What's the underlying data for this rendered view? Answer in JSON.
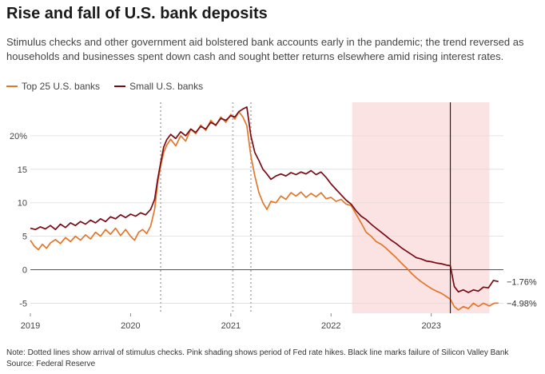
{
  "header": {
    "title": "Rise and fall of U.S. bank deposits",
    "subtitle": "Stimulus checks and other government aid bolstered bank accounts early in the pandemic; the trend reversed as households and businesses spent down cash and sought better returns elsewhere amid rising interest rates."
  },
  "footer": {
    "note": "Note: Dotted lines show arrival of stimulus checks. Pink shading shows period of Fed rate hikes. Black line marks failure of Silicon Valley Bank",
    "source": "Source: Federal Reserve"
  },
  "chart_data": {
    "type": "line",
    "title": "Rise and fall of U.S. bank deposits",
    "xlabel": "",
    "ylabel": "",
    "x_ticks": [
      "2019",
      "2020",
      "2021",
      "2022",
      "2023"
    ],
    "y_ticks": [
      "20%",
      "15",
      "10",
      "5",
      "0",
      "-5"
    ],
    "ylim": [
      -6.5,
      25
    ],
    "xlim": [
      2019.0,
      2023.72
    ],
    "grid": true,
    "legend_position": "top-left",
    "stimulus_dates": [
      2020.3,
      2021.02,
      2021.2
    ],
    "rate_hike_period": [
      2022.21,
      2023.58
    ],
    "svb_failure": 2023.19,
    "series": [
      {
        "name": "Top 25 U.S. banks",
        "color": "#e2772a",
        "end_label": "−4.98%",
        "points": [
          [
            2019.0,
            4.4
          ],
          [
            2019.04,
            3.5
          ],
          [
            2019.08,
            3.0
          ],
          [
            2019.12,
            3.8
          ],
          [
            2019.16,
            3.2
          ],
          [
            2019.2,
            4.0
          ],
          [
            2019.25,
            4.5
          ],
          [
            2019.3,
            3.9
          ],
          [
            2019.35,
            4.8
          ],
          [
            2019.4,
            4.2
          ],
          [
            2019.45,
            5.0
          ],
          [
            2019.5,
            4.4
          ],
          [
            2019.55,
            5.2
          ],
          [
            2019.6,
            4.6
          ],
          [
            2019.65,
            5.6
          ],
          [
            2019.7,
            5.0
          ],
          [
            2019.75,
            6.0
          ],
          [
            2019.8,
            5.3
          ],
          [
            2019.85,
            6.2
          ],
          [
            2019.9,
            5.1
          ],
          [
            2019.95,
            6.0
          ],
          [
            2020.0,
            5.0
          ],
          [
            2020.04,
            4.4
          ],
          [
            2020.08,
            5.6
          ],
          [
            2020.12,
            6.0
          ],
          [
            2020.16,
            5.4
          ],
          [
            2020.2,
            6.5
          ],
          [
            2020.24,
            9.0
          ],
          [
            2020.27,
            13.0
          ],
          [
            2020.3,
            15.5
          ],
          [
            2020.33,
            17.5
          ],
          [
            2020.36,
            18.6
          ],
          [
            2020.4,
            19.5
          ],
          [
            2020.45,
            18.5
          ],
          [
            2020.5,
            20.0
          ],
          [
            2020.55,
            19.2
          ],
          [
            2020.6,
            21.0
          ],
          [
            2020.65,
            20.3
          ],
          [
            2020.7,
            21.6
          ],
          [
            2020.75,
            20.8
          ],
          [
            2020.8,
            22.3
          ],
          [
            2020.85,
            21.5
          ],
          [
            2020.9,
            22.8
          ],
          [
            2020.95,
            22.0
          ],
          [
            2021.0,
            23.2
          ],
          [
            2021.04,
            22.5
          ],
          [
            2021.08,
            23.6
          ],
          [
            2021.12,
            22.8
          ],
          [
            2021.16,
            21.5
          ],
          [
            2021.2,
            17.0
          ],
          [
            2021.24,
            14.0
          ],
          [
            2021.28,
            11.5
          ],
          [
            2021.32,
            10.0
          ],
          [
            2021.36,
            9.0
          ],
          [
            2021.4,
            10.2
          ],
          [
            2021.45,
            10.0
          ],
          [
            2021.5,
            11.0
          ],
          [
            2021.55,
            10.5
          ],
          [
            2021.6,
            11.5
          ],
          [
            2021.65,
            11.0
          ],
          [
            2021.7,
            11.6
          ],
          [
            2021.75,
            10.8
          ],
          [
            2021.8,
            11.4
          ],
          [
            2021.85,
            10.9
          ],
          [
            2021.9,
            11.5
          ],
          [
            2021.95,
            10.6
          ],
          [
            2022.0,
            10.8
          ],
          [
            2022.05,
            10.2
          ],
          [
            2022.1,
            10.5
          ],
          [
            2022.15,
            9.8
          ],
          [
            2022.2,
            9.6
          ],
          [
            2022.25,
            8.3
          ],
          [
            2022.3,
            7.0
          ],
          [
            2022.35,
            5.6
          ],
          [
            2022.4,
            5.0
          ],
          [
            2022.45,
            4.2
          ],
          [
            2022.5,
            3.8
          ],
          [
            2022.55,
            3.2
          ],
          [
            2022.6,
            2.5
          ],
          [
            2022.65,
            1.8
          ],
          [
            2022.7,
            1.0
          ],
          [
            2022.75,
            0.3
          ],
          [
            2022.8,
            -0.5
          ],
          [
            2022.85,
            -1.2
          ],
          [
            2022.9,
            -1.8
          ],
          [
            2022.95,
            -2.3
          ],
          [
            2023.0,
            -2.8
          ],
          [
            2023.05,
            -3.2
          ],
          [
            2023.1,
            -3.5
          ],
          [
            2023.15,
            -4.0
          ],
          [
            2023.19,
            -4.4
          ],
          [
            2023.23,
            -5.5
          ],
          [
            2023.27,
            -6.0
          ],
          [
            2023.32,
            -5.5
          ],
          [
            2023.37,
            -5.8
          ],
          [
            2023.42,
            -5.0
          ],
          [
            2023.47,
            -5.5
          ],
          [
            2023.52,
            -5.0
          ],
          [
            2023.58,
            -5.4
          ],
          [
            2023.63,
            -5.0
          ],
          [
            2023.67,
            -4.98
          ]
        ]
      },
      {
        "name": "Small U.S. banks",
        "color": "#7a0a14",
        "end_label": "−1.76%",
        "points": [
          [
            2019.0,
            6.2
          ],
          [
            2019.05,
            6.0
          ],
          [
            2019.1,
            6.4
          ],
          [
            2019.15,
            6.1
          ],
          [
            2019.2,
            6.6
          ],
          [
            2019.25,
            6.0
          ],
          [
            2019.3,
            6.8
          ],
          [
            2019.35,
            6.3
          ],
          [
            2019.4,
            7.0
          ],
          [
            2019.45,
            6.6
          ],
          [
            2019.5,
            7.2
          ],
          [
            2019.55,
            6.8
          ],
          [
            2019.6,
            7.4
          ],
          [
            2019.65,
            7.0
          ],
          [
            2019.7,
            7.6
          ],
          [
            2019.75,
            7.2
          ],
          [
            2019.8,
            7.9
          ],
          [
            2019.85,
            7.6
          ],
          [
            2019.9,
            8.2
          ],
          [
            2019.95,
            7.8
          ],
          [
            2020.0,
            8.3
          ],
          [
            2020.05,
            8.0
          ],
          [
            2020.1,
            8.5
          ],
          [
            2020.15,
            8.2
          ],
          [
            2020.2,
            9.0
          ],
          [
            2020.24,
            10.5
          ],
          [
            2020.27,
            13.5
          ],
          [
            2020.3,
            16.0
          ],
          [
            2020.33,
            18.3
          ],
          [
            2020.36,
            19.4
          ],
          [
            2020.4,
            20.2
          ],
          [
            2020.45,
            19.6
          ],
          [
            2020.5,
            20.6
          ],
          [
            2020.55,
            20.0
          ],
          [
            2020.6,
            21.0
          ],
          [
            2020.65,
            20.5
          ],
          [
            2020.7,
            21.4
          ],
          [
            2020.75,
            21.0
          ],
          [
            2020.8,
            22.0
          ],
          [
            2020.85,
            21.6
          ],
          [
            2020.9,
            22.6
          ],
          [
            2020.95,
            22.3
          ],
          [
            2021.0,
            23.0
          ],
          [
            2021.04,
            22.8
          ],
          [
            2021.08,
            23.6
          ],
          [
            2021.12,
            24.0
          ],
          [
            2021.16,
            24.3
          ],
          [
            2021.2,
            20.0
          ],
          [
            2021.24,
            17.5
          ],
          [
            2021.28,
            16.3
          ],
          [
            2021.32,
            15.0
          ],
          [
            2021.36,
            14.3
          ],
          [
            2021.4,
            13.5
          ],
          [
            2021.45,
            14.0
          ],
          [
            2021.5,
            14.3
          ],
          [
            2021.55,
            14.0
          ],
          [
            2021.6,
            14.5
          ],
          [
            2021.65,
            14.2
          ],
          [
            2021.7,
            14.6
          ],
          [
            2021.75,
            14.3
          ],
          [
            2021.8,
            14.8
          ],
          [
            2021.85,
            14.2
          ],
          [
            2021.9,
            14.6
          ],
          [
            2021.95,
            13.8
          ],
          [
            2022.0,
            12.8
          ],
          [
            2022.05,
            12.0
          ],
          [
            2022.1,
            11.2
          ],
          [
            2022.15,
            10.4
          ],
          [
            2022.2,
            9.8
          ],
          [
            2022.25,
            8.8
          ],
          [
            2022.3,
            8.0
          ],
          [
            2022.35,
            7.5
          ],
          [
            2022.4,
            6.8
          ],
          [
            2022.45,
            6.2
          ],
          [
            2022.5,
            5.6
          ],
          [
            2022.55,
            5.0
          ],
          [
            2022.6,
            4.4
          ],
          [
            2022.65,
            3.9
          ],
          [
            2022.7,
            3.3
          ],
          [
            2022.75,
            2.8
          ],
          [
            2022.8,
            2.3
          ],
          [
            2022.85,
            1.8
          ],
          [
            2022.9,
            1.6
          ],
          [
            2022.95,
            1.3
          ],
          [
            2023.0,
            1.2
          ],
          [
            2023.05,
            1.0
          ],
          [
            2023.1,
            0.9
          ],
          [
            2023.15,
            0.7
          ],
          [
            2023.19,
            0.6
          ],
          [
            2023.23,
            -2.5
          ],
          [
            2023.27,
            -3.3
          ],
          [
            2023.32,
            -3.0
          ],
          [
            2023.37,
            -3.4
          ],
          [
            2023.42,
            -3.0
          ],
          [
            2023.47,
            -3.2
          ],
          [
            2023.52,
            -2.6
          ],
          [
            2023.57,
            -2.7
          ],
          [
            2023.62,
            -1.6
          ],
          [
            2023.67,
            -1.76
          ]
        ]
      }
    ]
  }
}
